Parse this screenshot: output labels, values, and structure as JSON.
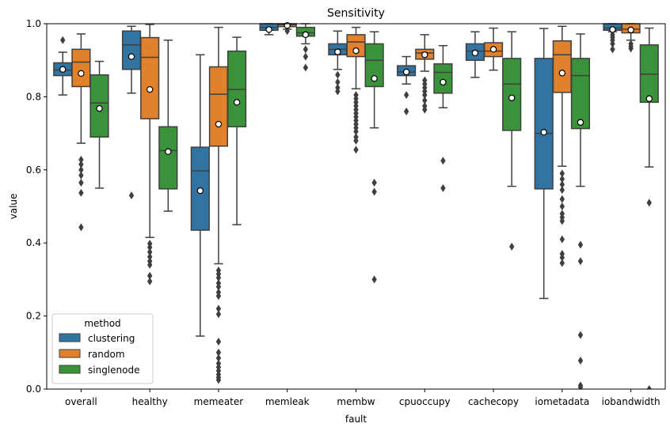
{
  "chart_data": {
    "type": "box",
    "title": "Sensitivity",
    "xlabel": "fault",
    "ylabel": "value",
    "ylim": [
      0,
      1.0
    ],
    "yticks": [
      0.0,
      0.2,
      0.4,
      0.6,
      0.8,
      1.0
    ],
    "ytick_labels": [
      "0.0",
      "0.2",
      "0.4",
      "0.6",
      "0.8",
      "1.0"
    ],
    "categories": [
      "overall",
      "healthy",
      "memeater",
      "memleak",
      "membw",
      "cpuoccupy",
      "cachecopy",
      "iometadata",
      "iobandwidth"
    ],
    "legend": {
      "title": "method",
      "placement": "lower-left",
      "entries": [
        "clustering",
        "random",
        "singlenode"
      ]
    },
    "series": [
      {
        "name": "clustering",
        "color": "#3274a1",
        "boxes": [
          {
            "whislo": 0.805,
            "q1": 0.858,
            "med": 0.873,
            "q3": 0.893,
            "whishi": 0.922,
            "mean": 0.875,
            "fliers": [
              0.955
            ]
          },
          {
            "whislo": 0.81,
            "q1": 0.875,
            "med": 0.942,
            "q3": 0.98,
            "whishi": 0.993,
            "mean": 0.91,
            "fliers": [
              0.53
            ]
          },
          {
            "whislo": 0.145,
            "q1": 0.435,
            "med": 0.597,
            "q3": 0.662,
            "whishi": 0.915,
            "mean": 0.543,
            "fliers": []
          },
          {
            "whislo": 0.97,
            "q1": 0.982,
            "med": 0.99,
            "q3": 1.0,
            "whishi": 1.0,
            "mean": 0.984,
            "fliers": []
          },
          {
            "whislo": 0.875,
            "q1": 0.915,
            "med": 0.93,
            "q3": 0.945,
            "whishi": 0.98,
            "mean": 0.923,
            "fliers": [
              0.86,
              0.84,
              0.825,
              0.815
            ]
          },
          {
            "whislo": 0.835,
            "q1": 0.858,
            "med": 0.868,
            "q3": 0.885,
            "whishi": 0.91,
            "mean": 0.868,
            "fliers": [
              0.805,
              0.76
            ]
          },
          {
            "whislo": 0.853,
            "q1": 0.9,
            "med": 0.925,
            "q3": 0.945,
            "whishi": 0.978,
            "mean": 0.92,
            "fliers": []
          },
          {
            "whislo": 0.248,
            "q1": 0.548,
            "med": 0.7,
            "q3": 0.905,
            "whishi": 0.987,
            "mean": 0.703,
            "fliers": []
          },
          {
            "whislo": 0.978,
            "q1": 0.982,
            "med": 0.988,
            "q3": 1.0,
            "whishi": 1.0,
            "mean": 0.984,
            "fliers": [
              0.97,
              0.963,
              0.955,
              0.945,
              0.93
            ]
          }
        ]
      },
      {
        "name": "random",
        "color": "#e1812c",
        "boxes": [
          {
            "whislo": 0.673,
            "q1": 0.828,
            "med": 0.895,
            "q3": 0.93,
            "whishi": 0.972,
            "mean": 0.864,
            "fliers": [
              0.628,
              0.615,
              0.6,
              0.585,
              0.565,
              0.537,
              0.443
            ]
          },
          {
            "whislo": 0.415,
            "q1": 0.74,
            "med": 0.908,
            "q3": 0.962,
            "whishi": 0.998,
            "mean": 0.82,
            "fliers": [
              0.398,
              0.388,
              0.375,
              0.362,
              0.35,
              0.34,
              0.31,
              0.295
            ]
          },
          {
            "whislo": 0.343,
            "q1": 0.665,
            "med": 0.807,
            "q3": 0.882,
            "whishi": 0.99,
            "mean": 0.725,
            "fliers": [
              0.325,
              0.315,
              0.305,
              0.29,
              0.28,
              0.265,
              0.255,
              0.22,
              0.205,
              0.13,
              0.1,
              0.085,
              0.07,
              0.06,
              0.05,
              0.04,
              0.032,
              0.025
            ]
          },
          {
            "whislo": 0.985,
            "q1": 0.992,
            "med": 0.997,
            "q3": 1.0,
            "whishi": 1.0,
            "mean": 0.995,
            "fliers": [
              0.98
            ]
          },
          {
            "whislo": 0.822,
            "q1": 0.91,
            "med": 0.95,
            "q3": 0.97,
            "whishi": 0.99,
            "mean": 0.926,
            "fliers": [
              0.805,
              0.795,
              0.785,
              0.775,
              0.765,
              0.755,
              0.745,
              0.735,
              0.725,
              0.715,
              0.705,
              0.69,
              0.68,
              0.655
            ]
          },
          {
            "whislo": 0.87,
            "q1": 0.903,
            "med": 0.92,
            "q3": 0.93,
            "whishi": 0.97,
            "mean": 0.915,
            "fliers": [
              0.845,
              0.835,
              0.825,
              0.815,
              0.805,
              0.79,
              0.775,
              0.765
            ]
          },
          {
            "whislo": 0.873,
            "q1": 0.91,
            "med": 0.925,
            "q3": 0.948,
            "whishi": 0.988,
            "mean": 0.93,
            "fliers": []
          },
          {
            "whislo": 0.61,
            "q1": 0.812,
            "med": 0.915,
            "q3": 0.953,
            "whishi": 0.993,
            "mean": 0.865,
            "fliers": [
              0.59,
              0.575,
              0.56,
              0.545,
              0.52,
              0.5,
              0.48,
              0.47,
              0.46,
              0.41,
              0.37,
              0.36,
              0.345
            ]
          },
          {
            "whislo": 0.955,
            "q1": 0.975,
            "med": 0.985,
            "q3": 1.0,
            "whishi": 1.0,
            "mean": 0.983,
            "fliers": [
              0.945,
              0.938,
              0.932
            ]
          }
        ]
      },
      {
        "name": "singlenode",
        "color": "#3a923a",
        "boxes": [
          {
            "whislo": 0.55,
            "q1": 0.69,
            "med": 0.783,
            "q3": 0.86,
            "whishi": 0.897,
            "mean": 0.768,
            "fliers": []
          },
          {
            "whislo": 0.487,
            "q1": 0.548,
            "med": 0.653,
            "q3": 0.718,
            "whishi": 0.955,
            "mean": 0.65,
            "fliers": []
          },
          {
            "whislo": 0.45,
            "q1": 0.718,
            "med": 0.82,
            "q3": 0.925,
            "whishi": 0.963,
            "mean": 0.785,
            "fliers": []
          },
          {
            "whislo": 0.945,
            "q1": 0.966,
            "med": 0.975,
            "q3": 0.99,
            "whishi": 1.0,
            "mean": 0.97,
            "fliers": [
              0.93,
              0.91,
              0.88
            ]
          },
          {
            "whislo": 0.715,
            "q1": 0.828,
            "med": 0.9,
            "q3": 0.945,
            "whishi": 0.978,
            "mean": 0.85,
            "fliers": [
              0.565,
              0.54,
              0.3
            ]
          },
          {
            "whislo": 0.77,
            "q1": 0.81,
            "med": 0.867,
            "q3": 0.89,
            "whishi": 0.94,
            "mean": 0.84,
            "fliers": [
              0.625,
              0.55
            ]
          },
          {
            "whislo": 0.555,
            "q1": 0.708,
            "med": 0.835,
            "q3": 0.905,
            "whishi": 0.978,
            "mean": 0.797,
            "fliers": [
              0.39
            ]
          },
          {
            "whislo": 0.555,
            "q1": 0.713,
            "med": 0.858,
            "q3": 0.905,
            "whishi": 0.972,
            "mean": 0.73,
            "fliers": [
              0.395,
              0.35,
              0.148,
              0.078,
              0.01,
              0.005
            ]
          },
          {
            "whislo": 0.608,
            "q1": 0.785,
            "med": 0.862,
            "q3": 0.942,
            "whishi": 0.988,
            "mean": 0.795,
            "fliers": [
              0.51,
              0.0
            ]
          }
        ]
      }
    ]
  }
}
